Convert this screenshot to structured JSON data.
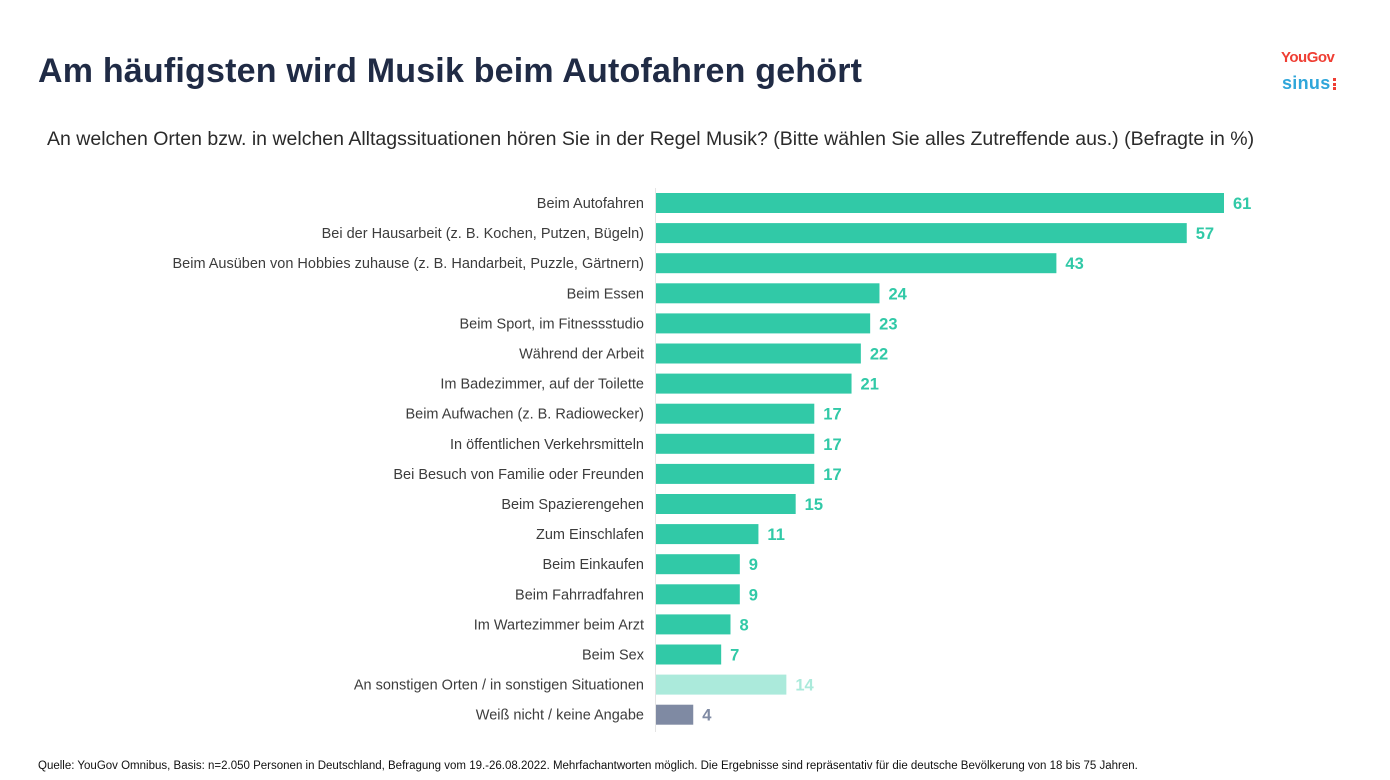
{
  "header": {
    "title": "Am häufigsten wird Musik beim Autofahren gehört",
    "subtitle": "An welchen Orten bzw. in welchen Alltagssituationen hören Sie in der Regel Musik? (Bitte wählen Sie alles Zutreffende aus.) (Befragte in %)"
  },
  "logos": {
    "yougov": "YouGov",
    "sinus": "sinus"
  },
  "footer": {
    "source": "Quelle: YouGov Omnibus, Basis: n=2.050 Personen in Deutschland, Befragung vom 19.-26.08.2022. Mehrfachantworten möglich. Die Ergebnisse sind repräsentativ für die deutsche Bevölkerung von 18 bis 75 Jahren."
  },
  "colors": {
    "primary_bar": "#31c9a7",
    "other_bar": "#abeadb",
    "dontknow_bar": "#7f8aa3",
    "title": "#202b45"
  },
  "chart_data": {
    "type": "bar",
    "orientation": "horizontal",
    "title": "Am häufigsten wird Musik beim Autofahren gehört",
    "xlabel": "",
    "ylabel": "",
    "unit": "%",
    "xlim": [
      0,
      61
    ],
    "grid": false,
    "legend": "none",
    "categories": [
      "Beim Autofahren",
      "Bei der Hausarbeit (z. B. Kochen, Putzen, Bügeln)",
      "Beim Ausüben von Hobbies zuhause (z. B. Handarbeit, Puzzle, Gärtnern)",
      "Beim Essen",
      "Beim Sport, im Fitnessstudio",
      "Während der Arbeit",
      "Im Badezimmer, auf der Toilette",
      "Beim Aufwachen (z. B. Radiowecker)",
      "In öffentlichen Verkehrsmitteln",
      "Bei Besuch von Familie oder Freunden",
      "Beim Spazierengehen",
      "Zum Einschlafen",
      "Beim Einkaufen",
      "Beim Fahrradfahren",
      "Im Wartezimmer beim Arzt",
      "Beim Sex",
      "An sonstigen Orten / in sonstigen Situationen",
      "Weiß nicht / keine Angabe"
    ],
    "values": [
      61,
      57,
      43,
      24,
      23,
      22,
      21,
      17,
      17,
      17,
      15,
      11,
      9,
      9,
      8,
      7,
      14,
      4
    ],
    "bar_groups": [
      "primary",
      "primary",
      "primary",
      "primary",
      "primary",
      "primary",
      "primary",
      "primary",
      "primary",
      "primary",
      "primary",
      "primary",
      "primary",
      "primary",
      "primary",
      "primary",
      "other",
      "dontknow"
    ]
  }
}
